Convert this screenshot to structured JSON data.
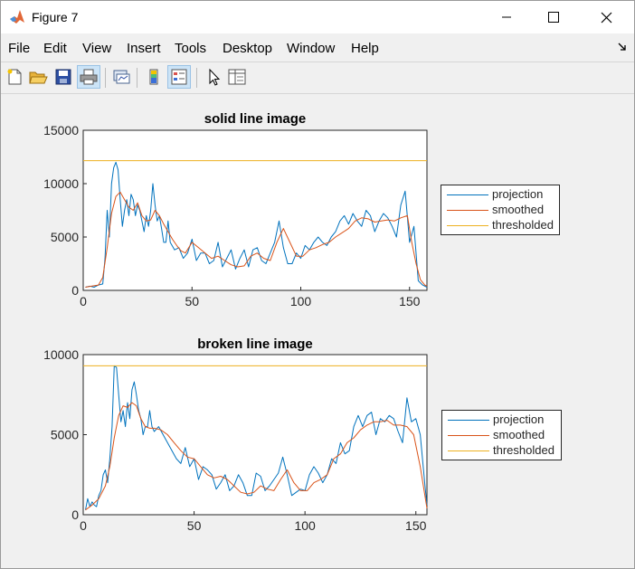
{
  "window": {
    "title": "Figure 7"
  },
  "menu": {
    "items": [
      "File",
      "Edit",
      "View",
      "Insert",
      "Tools",
      "Desktop",
      "Window",
      "Help"
    ]
  },
  "toolbar": {
    "buttons": [
      "new-figure",
      "open-file",
      "save-figure",
      "print-figure",
      "link-plot",
      "insert-colorbar",
      "insert-legend",
      "edit-plot",
      "open-property-inspector"
    ]
  },
  "colors": {
    "projection": "#0072bd",
    "smoothed": "#d95319",
    "thresholded": "#edb120"
  },
  "chart_data": [
    {
      "type": "line",
      "title": "solid line image",
      "xlim": [
        0,
        158
      ],
      "ylim": [
        0,
        15000
      ],
      "xticks": [
        "0",
        "50",
        "100",
        "150"
      ],
      "yticks": [
        "0",
        "5000",
        "10000",
        "15000"
      ],
      "legend": [
        "projection",
        "smoothed",
        "thresholded"
      ],
      "legend_position": "outside-right",
      "series": [
        {
          "name": "projection",
          "x": [
            1,
            3,
            5,
            7,
            9,
            10,
            11,
            12,
            13,
            14,
            15,
            16,
            17,
            18,
            19,
            20,
            21,
            22,
            23,
            24,
            25,
            26,
            27,
            28,
            29,
            30,
            31,
            32,
            33,
            34,
            35,
            36,
            37,
            38,
            39,
            40,
            42,
            44,
            46,
            48,
            50,
            52,
            54,
            56,
            58,
            60,
            62,
            64,
            66,
            68,
            70,
            72,
            74,
            76,
            78,
            80,
            82,
            84,
            86,
            88,
            90,
            92,
            94,
            96,
            98,
            100,
            102,
            104,
            106,
            108,
            110,
            112,
            114,
            116,
            118,
            120,
            122,
            124,
            126,
            128,
            130,
            132,
            134,
            136,
            138,
            140,
            142,
            144,
            146,
            148,
            150,
            152,
            154,
            156,
            158
          ],
          "y": [
            300,
            400,
            300,
            500,
            600,
            3000,
            7500,
            5000,
            10000,
            11500,
            12000,
            11300,
            8500,
            6000,
            7500,
            8500,
            7000,
            9000,
            8500,
            7000,
            8000,
            7500,
            6500,
            5500,
            7000,
            6000,
            7500,
            10000,
            8000,
            6500,
            7000,
            5800,
            4500,
            4500,
            6500,
            4500,
            3800,
            4000,
            3000,
            3500,
            4800,
            2800,
            3500,
            3500,
            2500,
            2800,
            4500,
            2200,
            3000,
            3800,
            2000,
            3000,
            3800,
            2200,
            3800,
            4000,
            2800,
            2500,
            3500,
            4500,
            6500,
            4000,
            2500,
            2500,
            3500,
            3000,
            4200,
            3800,
            4500,
            5000,
            4500,
            4200,
            5000,
            5500,
            6500,
            7000,
            6200,
            7200,
            6500,
            6000,
            7500,
            7000,
            5500,
            6500,
            7200,
            6800,
            6000,
            5000,
            8000,
            9300,
            4500,
            6000,
            900,
            500,
            300
          ]
        },
        {
          "name": "smoothed",
          "x": [
            1,
            4,
            7,
            9,
            11,
            13,
            15,
            17,
            19,
            21,
            23,
            25,
            27,
            29,
            31,
            33,
            35,
            37,
            39,
            41,
            43,
            45,
            47,
            50,
            53,
            56,
            59,
            62,
            65,
            68,
            71,
            74,
            77,
            80,
            83,
            86,
            89,
            92,
            95,
            98,
            101,
            104,
            107,
            110,
            113,
            116,
            119,
            122,
            125,
            128,
            131,
            134,
            137,
            140,
            143,
            146,
            149,
            151,
            153,
            155,
            157,
            158
          ],
          "y": [
            300,
            400,
            500,
            1200,
            4000,
            7200,
            8800,
            9200,
            8500,
            7800,
            7500,
            8200,
            7000,
            6500,
            6600,
            7500,
            7000,
            6200,
            5500,
            4800,
            4200,
            3700,
            3500,
            4500,
            4000,
            3500,
            3000,
            3200,
            2800,
            2400,
            2200,
            2300,
            3200,
            3500,
            3000,
            2800,
            4500,
            5800,
            4500,
            3200,
            3200,
            3800,
            4000,
            4300,
            4500,
            5000,
            5400,
            5800,
            6500,
            6800,
            6700,
            6400,
            6500,
            6600,
            6500,
            6800,
            7000,
            4500,
            2500,
            1000,
            500,
            400
          ]
        },
        {
          "name": "thresholded",
          "x": [
            0,
            158
          ],
          "y": [
            12150,
            12150
          ]
        }
      ]
    },
    {
      "type": "line",
      "title": "broken line image",
      "xlim": [
        0,
        155
      ],
      "ylim": [
        0,
        10000
      ],
      "xticks": [
        "0",
        "50",
        "100",
        "150"
      ],
      "yticks": [
        "0",
        "5000",
        "10000"
      ],
      "legend": [
        "projection",
        "smoothed",
        "thresholded"
      ],
      "legend_position": "outside-right",
      "series": [
        {
          "name": "projection",
          "x": [
            1,
            2,
            3,
            4,
            5,
            6,
            7,
            8,
            9,
            10,
            11,
            12,
            13,
            14,
            15,
            16,
            17,
            18,
            19,
            20,
            21,
            22,
            23,
            24,
            25,
            26,
            27,
            28,
            29,
            30,
            31,
            32,
            34,
            36,
            38,
            40,
            42,
            44,
            46,
            48,
            50,
            52,
            54,
            56,
            58,
            60,
            62,
            64,
            66,
            68,
            70,
            72,
            74,
            76,
            78,
            80,
            82,
            84,
            86,
            88,
            90,
            92,
            94,
            96,
            98,
            100,
            102,
            104,
            106,
            108,
            110,
            112,
            114,
            116,
            118,
            120,
            122,
            124,
            126,
            128,
            130,
            132,
            134,
            136,
            138,
            140,
            142,
            144,
            146,
            148,
            150,
            152,
            154,
            155
          ],
          "y": [
            300,
            1000,
            500,
            800,
            600,
            500,
            1200,
            1500,
            2500,
            2800,
            2000,
            3500,
            5500,
            9300,
            9200,
            7500,
            5800,
            6500,
            5500,
            7000,
            6000,
            7800,
            8300,
            7500,
            6500,
            6000,
            5000,
            5500,
            5500,
            6500,
            5500,
            5200,
            5500,
            5000,
            4500,
            4000,
            3500,
            3200,
            4200,
            3000,
            3500,
            2200,
            3000,
            2800,
            2500,
            1600,
            2000,
            2500,
            1500,
            1800,
            2500,
            2000,
            1200,
            1200,
            2600,
            2400,
            1500,
            1800,
            2200,
            2600,
            3600,
            2500,
            1200,
            1400,
            1600,
            1500,
            2500,
            3000,
            2600,
            2000,
            2500,
            3500,
            3200,
            4500,
            3800,
            4000,
            5500,
            6200,
            5500,
            6200,
            6400,
            5000,
            6000,
            5800,
            6200,
            6000,
            5200,
            4500,
            7300,
            5800,
            6000,
            5000,
            2000,
            600
          ]
        },
        {
          "name": "smoothed",
          "x": [
            1,
            4,
            7,
            10,
            12,
            14,
            16,
            18,
            20,
            22,
            24,
            26,
            28,
            30,
            32,
            35,
            38,
            41,
            44,
            47,
            50,
            53,
            56,
            59,
            62,
            65,
            68,
            71,
            74,
            77,
            80,
            83,
            86,
            89,
            92,
            95,
            98,
            101,
            104,
            107,
            110,
            113,
            116,
            119,
            122,
            125,
            128,
            131,
            134,
            137,
            140,
            143,
            146,
            149,
            152,
            155
          ],
          "y": [
            300,
            600,
            1000,
            1800,
            3000,
            4800,
            6200,
            6800,
            6700,
            7000,
            6800,
            6000,
            5500,
            5400,
            5400,
            5300,
            5000,
            4500,
            4000,
            3600,
            3500,
            3000,
            2500,
            2300,
            2400,
            2200,
            1800,
            1400,
            1300,
            1400,
            1800,
            1600,
            1500,
            2200,
            2800,
            2000,
            1500,
            1500,
            2000,
            2200,
            2500,
            3500,
            3800,
            4500,
            4800,
            5300,
            5600,
            5800,
            5800,
            5900,
            5600,
            5600,
            5500,
            5000,
            3000,
            400
          ]
        },
        {
          "name": "thresholded",
          "x": [
            0,
            155
          ],
          "y": [
            9300,
            9300
          ]
        }
      ]
    }
  ]
}
